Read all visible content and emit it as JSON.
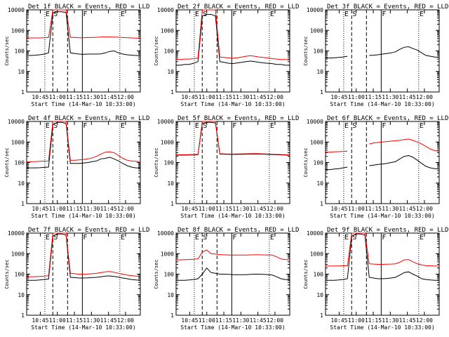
{
  "figure": {
    "x_axis_label": "Start Time (14-Mar-10 10:33:00)",
    "y_axis_label": "Counts/sec",
    "y_tick_labels": [
      "1",
      "10",
      "100",
      "1000",
      "10000"
    ],
    "x_tick_labels": [
      "10:45",
      "11:00",
      "11:15",
      "11:30",
      "11:45",
      "12:00"
    ],
    "colors": {
      "events": "#000000",
      "lld": "#ff0000",
      "background": "#ffffff"
    }
  },
  "chart_data": [
    {
      "type": "line",
      "title": "Det 1f BLACK = Events, RED = LLD",
      "xlabel": "Start Time (14-Mar-10 10:33:00)",
      "ylabel": "Counts/sec",
      "y_scale": "log",
      "ylim": [
        1,
        10000
      ],
      "x_ticks": [
        "10:45",
        "11:00",
        "11:15",
        "11:30",
        "11:45",
        "12:00"
      ],
      "markers": [
        {
          "label": "E",
          "style": "dotted"
        },
        {
          "label": "S",
          "style": "dashed"
        },
        {
          "label": "",
          "style": "dashed"
        },
        {
          "label": "F",
          "style": "solid"
        },
        {
          "label": "E",
          "style": "dotted"
        }
      ],
      "series": [
        {
          "name": "Events",
          "color": "#000000",
          "values": [
            60,
            60,
            62,
            65,
            70,
            80,
            7000,
            8000,
            8000,
            7500,
            80,
            75,
            70,
            68,
            70,
            70,
            70,
            72,
            80,
            95,
            100,
            80,
            70,
            65,
            62,
            60,
            58
          ]
        },
        {
          "name": "LLD",
          "color": "#ff0000",
          "values": [
            430,
            430,
            430,
            430,
            440,
            450,
            10000,
            10000,
            10000,
            10000,
            460,
            450,
            440,
            440,
            450,
            450,
            460,
            470,
            480,
            480,
            470,
            460,
            450,
            440,
            430,
            420,
            420
          ]
        }
      ]
    },
    {
      "type": "line",
      "title": "Det 2f BLACK = Events, RED = LLD",
      "xlabel": "Start Time (14-Mar-10 10:33:00)",
      "ylabel": "Counts/sec",
      "y_scale": "log",
      "ylim": [
        1,
        10000
      ],
      "x_ticks": [
        "10:45",
        "11:00",
        "11:15",
        "11:30",
        "11:45",
        "12:00"
      ],
      "markers": [
        {
          "label": "E",
          "style": "dotted"
        },
        {
          "label": "S",
          "style": "dashed"
        },
        {
          "label": "",
          "style": "dashed"
        },
        {
          "label": "F",
          "style": "solid"
        },
        {
          "label": "E",
          "style": "dotted"
        }
      ],
      "series": [
        {
          "name": "Events",
          "color": "#000000",
          "values": [
            20,
            20,
            22,
            22,
            25,
            30,
            5000,
            6000,
            6000,
            5000,
            30,
            28,
            25,
            24,
            26,
            28,
            30,
            32,
            30,
            28,
            26,
            25,
            24,
            22,
            22,
            20,
            20
          ]
        },
        {
          "name": "LLD",
          "color": "#ff0000",
          "values": [
            38,
            38,
            40,
            40,
            42,
            45,
            10000,
            10000,
            10000,
            10000,
            50,
            48,
            45,
            44,
            46,
            50,
            55,
            58,
            55,
            50,
            48,
            45,
            42,
            40,
            38,
            38,
            36
          ]
        }
      ]
    },
    {
      "type": "line",
      "title": "Det 3f BLACK = Events, RED = LLD",
      "xlabel": "Start Time (14-Mar-10 10:33:00)",
      "ylabel": "Counts/sec",
      "y_scale": "log",
      "ylim": [
        1,
        10000
      ],
      "x_ticks": [
        "10:45",
        "11:00",
        "11:15",
        "11:30",
        "11:45",
        "12:00"
      ],
      "markers": [
        {
          "label": "E",
          "style": "dotted"
        },
        {
          "label": "S",
          "style": "dashed"
        },
        {
          "label": "",
          "style": "dashed"
        },
        {
          "label": "F",
          "style": "solid"
        },
        {
          "label": "E",
          "style": "dotted"
        }
      ],
      "series": [
        {
          "name": "Events",
          "color": "#000000",
          "values": [
            45,
            45,
            46,
            48,
            50,
            55,
            null,
            null,
            null,
            null,
            60,
            62,
            65,
            70,
            75,
            80,
            90,
            120,
            150,
            160,
            130,
            110,
            80,
            60,
            55,
            50,
            48
          ]
        }
      ]
    },
    {
      "type": "line",
      "title": "Det 4f BLACK = Events, RED = LLD",
      "xlabel": "Start Time (14-Mar-10 10:33:00)",
      "ylabel": "Counts/sec",
      "y_scale": "log",
      "ylim": [
        1,
        10000
      ],
      "x_ticks": [
        "10:45",
        "11:00",
        "11:15",
        "11:30",
        "11:45",
        "12:00"
      ],
      "markers": [
        {
          "label": "E",
          "style": "dotted"
        },
        {
          "label": "S",
          "style": "dashed"
        },
        {
          "label": "",
          "style": "dashed"
        },
        {
          "label": "F",
          "style": "solid"
        },
        {
          "label": "E",
          "style": "dotted"
        }
      ],
      "series": [
        {
          "name": "Events",
          "color": "#000000",
          "values": [
            55,
            55,
            55,
            56,
            58,
            60,
            7000,
            9000,
            9000,
            8000,
            90,
            90,
            90,
            95,
            100,
            110,
            120,
            150,
            160,
            180,
            150,
            120,
            90,
            70,
            60,
            55,
            55
          ]
        },
        {
          "name": "LLD",
          "color": "#ff0000",
          "values": [
            110,
            110,
            112,
            115,
            118,
            120,
            10000,
            10000,
            10000,
            10000,
            130,
            130,
            135,
            140,
            150,
            170,
            200,
            260,
            320,
            330,
            300,
            220,
            160,
            130,
            120,
            115,
            110
          ]
        }
      ]
    },
    {
      "type": "line",
      "title": "Det 5f BLACK = Events, RED = LLD",
      "xlabel": "Start Time (14-Mar-10 10:33:00)",
      "ylabel": "Counts/sec",
      "y_scale": "log",
      "ylim": [
        1,
        10000
      ],
      "x_ticks": [
        "10:45",
        "11:00",
        "11:15",
        "11:30",
        "11:45",
        "12:00"
      ],
      "markers": [
        {
          "label": "E",
          "style": "dotted"
        },
        {
          "label": "S",
          "style": "dashed"
        },
        {
          "label": "",
          "style": "dashed"
        },
        {
          "label": "F",
          "style": "solid"
        },
        {
          "label": "E",
          "style": "dotted"
        }
      ],
      "series": [
        {
          "name": "Events",
          "color": "#000000",
          "values": [
            230,
            230,
            230,
            232,
            235,
            240,
            8000,
            9000,
            9000,
            8500,
            260,
            255,
            250,
            250,
            250,
            252,
            255,
            258,
            260,
            258,
            255,
            250,
            245,
            240,
            235,
            230,
            230
          ]
        },
        {
          "name": "LLD",
          "color": "#ff0000",
          "values": [
            240,
            240,
            240,
            242,
            245,
            250,
            10000,
            10000,
            10000,
            10000,
            270,
            265,
            260,
            260,
            262,
            265,
            268,
            270,
            272,
            270,
            265,
            260,
            255,
            250,
            245,
            240,
            240
          ]
        }
      ]
    },
    {
      "type": "line",
      "title": "Det 6f BLACK = Events, RED = LLD",
      "xlabel": "Start Time (14-Mar-10 10:33:00)",
      "ylabel": "Counts/sec",
      "y_scale": "log",
      "ylim": [
        1,
        10000
      ],
      "x_ticks": [
        "10:45",
        "11:00",
        "11:15",
        "11:30",
        "11:45",
        "12:00"
      ],
      "markers": [
        {
          "label": "E",
          "style": "dotted"
        },
        {
          "label": "S",
          "style": "dashed"
        },
        {
          "label": "",
          "style": "dashed"
        },
        {
          "label": "F",
          "style": "solid"
        },
        {
          "label": "E",
          "style": "dotted"
        }
      ],
      "series": [
        {
          "name": "Events",
          "color": "#000000",
          "values": [
            45,
            45,
            48,
            50,
            55,
            60,
            null,
            null,
            null,
            null,
            70,
            75,
            80,
            85,
            90,
            100,
            110,
            150,
            200,
            220,
            180,
            130,
            90,
            65,
            55,
            50,
            48
          ]
        },
        {
          "name": "LLD",
          "color": "#ff0000",
          "values": [
            320,
            320,
            330,
            340,
            350,
            360,
            null,
            null,
            null,
            null,
            800,
            900,
            950,
            1000,
            1050,
            1100,
            1150,
            1200,
            1300,
            1400,
            1200,
            1000,
            800,
            600,
            450,
            380,
            350
          ]
        }
      ]
    },
    {
      "type": "line",
      "title": "Det 7f BLACK = Events, RED = LLD",
      "xlabel": "Start Time (14-Mar-10 10:33:00)",
      "ylabel": "Counts/sec",
      "y_scale": "log",
      "ylim": [
        1,
        10000
      ],
      "x_ticks": [
        "10:45",
        "11:00",
        "11:15",
        "11:30",
        "11:45",
        "12:00"
      ],
      "markers": [
        {
          "label": "E",
          "style": "dotted"
        },
        {
          "label": "S",
          "style": "dashed"
        },
        {
          "label": "",
          "style": "dashed"
        },
        {
          "label": "F",
          "style": "solid"
        },
        {
          "label": "E",
          "style": "dotted"
        }
      ],
      "series": [
        {
          "name": "Events",
          "color": "#000000",
          "values": [
            50,
            50,
            50,
            52,
            55,
            58,
            7000,
            9000,
            9000,
            8000,
            70,
            68,
            65,
            65,
            66,
            68,
            70,
            75,
            80,
            82,
            78,
            72,
            65,
            60,
            55,
            52,
            50
          ]
        },
        {
          "name": "LLD",
          "color": "#ff0000",
          "values": [
            75,
            75,
            76,
            78,
            80,
            85,
            10000,
            10000,
            10000,
            10000,
            110,
            105,
            100,
            100,
            102,
            105,
            110,
            120,
            130,
            135,
            125,
            110,
            100,
            90,
            85,
            80,
            78
          ]
        }
      ]
    },
    {
      "type": "line",
      "title": "Det 8f BLACK = Events, RED = LLD",
      "xlabel": "Start Time (14-Mar-10 10:33:00)",
      "ylabel": "Counts/sec",
      "y_scale": "log",
      "ylim": [
        1,
        10000
      ],
      "x_ticks": [
        "10:45",
        "11:00",
        "11:15",
        "11:30",
        "11:45",
        "12:00"
      ],
      "markers": [
        {
          "label": "E",
          "style": "dotted"
        },
        {
          "label": "S",
          "style": "dashed"
        },
        {
          "label": "",
          "style": "dashed"
        },
        {
          "label": "F",
          "style": "solid"
        },
        {
          "label": "E",
          "style": "dotted"
        }
      ],
      "series": [
        {
          "name": "Events",
          "color": "#000000",
          "values": [
            50,
            50,
            50,
            52,
            55,
            60,
            100,
            200,
            120,
            110,
            100,
            100,
            98,
            95,
            95,
            95,
            95,
            98,
            100,
            100,
            98,
            95,
            90,
            75,
            60,
            55,
            52
          ]
        },
        {
          "name": "LLD",
          "color": "#ff0000",
          "values": [
            500,
            500,
            510,
            520,
            530,
            550,
            1200,
            1500,
            1000,
            950,
            900,
            880,
            860,
            850,
            850,
            850,
            860,
            870,
            880,
            880,
            870,
            860,
            850,
            700,
            550,
            520,
            500
          ]
        }
      ]
    },
    {
      "type": "line",
      "title": "Det 9f BLACK = Events, RED = LLD",
      "xlabel": "Start Time (14-Mar-10 10:33:00)",
      "ylabel": "Counts/sec",
      "y_scale": "log",
      "ylim": [
        1,
        10000
      ],
      "x_ticks": [
        "10:45",
        "11:00",
        "11:15",
        "11:30",
        "11:45",
        "12:00"
      ],
      "markers": [
        {
          "label": "E",
          "style": "dotted"
        },
        {
          "label": "S",
          "style": "dashed"
        },
        {
          "label": "",
          "style": "dashed"
        },
        {
          "label": "F",
          "style": "solid"
        },
        {
          "label": "E",
          "style": "dotted"
        }
      ],
      "series": [
        {
          "name": "Events",
          "color": "#000000",
          "values": [
            50,
            50,
            50,
            52,
            55,
            60,
            7000,
            9000,
            9000,
            8000,
            70,
            65,
            60,
            60,
            62,
            65,
            70,
            90,
            120,
            130,
            100,
            80,
            60,
            55,
            52,
            50,
            50
          ]
        },
        {
          "name": "LLD",
          "color": "#ff0000",
          "values": [
            250,
            250,
            250,
            252,
            255,
            260,
            10000,
            10000,
            10000,
            10000,
            320,
            310,
            300,
            300,
            305,
            310,
            320,
            380,
            500,
            520,
            400,
            320,
            280,
            260,
            255,
            250,
            250
          ]
        }
      ]
    }
  ]
}
